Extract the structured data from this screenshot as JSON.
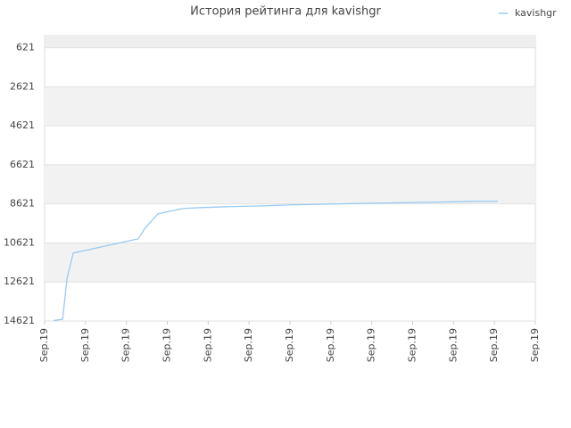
{
  "chart_data": {
    "type": "line",
    "title": "История рейтинга для kavishgr",
    "x": [
      0.22,
      0.44,
      0.55,
      0.7,
      2.29,
      2.44,
      2.77,
      3.38,
      3.82,
      4.54,
      5.3,
      6.04,
      6.98,
      8.18,
      9.38,
      10.51,
      11.08
    ],
    "series": [
      {
        "name": "kavishgr",
        "color": "#99c9f2",
        "values": [
          14600,
          14530,
          12420,
          11140,
          10410,
          9910,
          9130,
          8860,
          8810,
          8760,
          8720,
          8670,
          8630,
          8580,
          8540,
          8490,
          8490
        ]
      }
    ],
    "xlim": [
      0,
      12
    ],
    "xticks": [
      {
        "value": 0,
        "label": "Sep.19"
      },
      {
        "value": 1,
        "label": "Sep.19"
      },
      {
        "value": 2,
        "label": "Sep.19"
      },
      {
        "value": 3,
        "label": "Sep.19"
      },
      {
        "value": 4,
        "label": "Sep.19"
      },
      {
        "value": 5,
        "label": "Sep.19"
      },
      {
        "value": 6,
        "label": "Sep.19"
      },
      {
        "value": 7,
        "label": "Sep.19"
      },
      {
        "value": 8,
        "label": "Sep.19"
      },
      {
        "value": 9,
        "label": "Sep.19"
      },
      {
        "value": 10,
        "label": "Sep.19"
      },
      {
        "value": 11,
        "label": "Sep.19"
      },
      {
        "value": 12,
        "label": "Sep.19"
      }
    ],
    "ylim": [
      14621,
      0
    ],
    "yticks": [
      621,
      2621,
      4621,
      6621,
      8621,
      10621,
      12621,
      14621
    ],
    "grid": true,
    "legend": "top-right"
  }
}
